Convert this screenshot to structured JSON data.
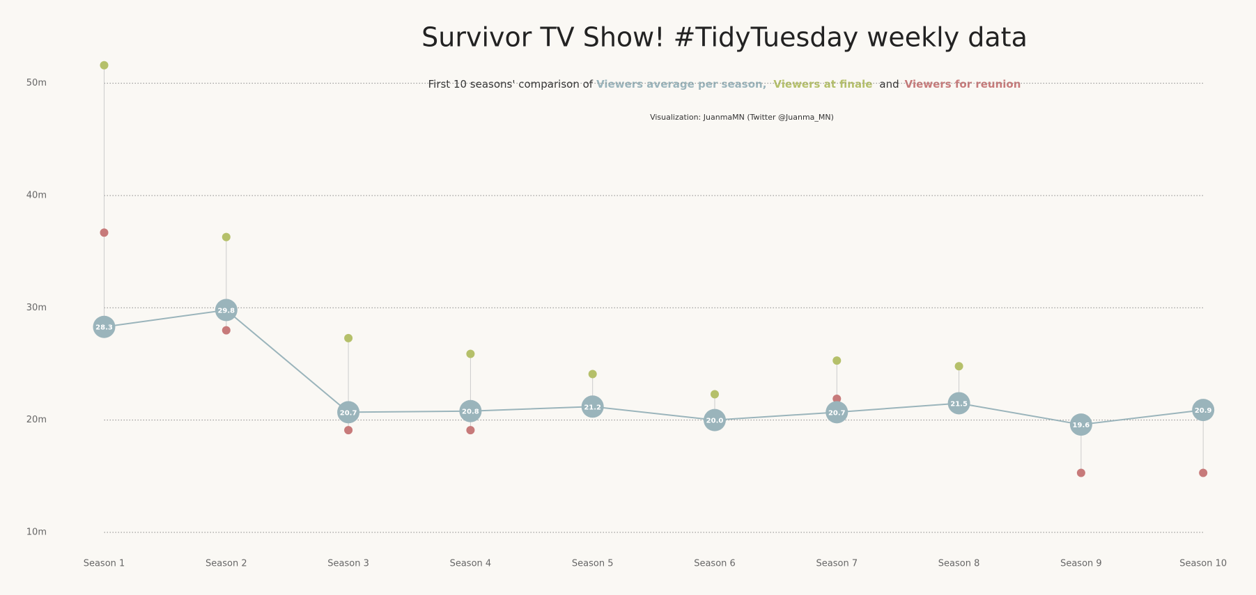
{
  "chart_data": {
    "type": "line",
    "title": "Survivor TV Show! #TidyTuesday weekly data",
    "subtitle": "First 10 seasons' comparison of",
    "subtitle_separator": ",",
    "subtitle_conjunction": "and",
    "credit": "Visualization: JuanmaMN (Twitter @Juanma_MN)",
    "categories": [
      "Season 1",
      "Season 2",
      "Season 3",
      "Season 4",
      "Season 5",
      "Season 6",
      "Season 7",
      "Season 8",
      "Season 9",
      "Season 10"
    ],
    "series": [
      {
        "name": "Viewers average per season",
        "color": "#9ab4bb",
        "values": [
          28.3,
          29.8,
          20.7,
          20.8,
          21.2,
          20.0,
          20.7,
          21.5,
          19.6,
          20.9
        ],
        "value_labels": [
          "28.3",
          "29.8",
          "20.7",
          "20.8",
          "21.2",
          "20.0",
          "20.7",
          "21.5",
          "19.6",
          "20.9"
        ]
      },
      {
        "name": "Viewers at finale",
        "color": "#b5c06a",
        "values": [
          51.6,
          36.3,
          27.3,
          25.9,
          24.1,
          22.3,
          25.3,
          24.8,
          null,
          null
        ]
      },
      {
        "name": "Viewers for reunion",
        "color": "#c77a7a",
        "values": [
          36.7,
          28.0,
          19.1,
          19.1,
          20.6,
          null,
          21.9,
          null,
          15.3,
          15.3
        ]
      }
    ],
    "ylim": [
      10,
      50
    ],
    "yticks": [
      {
        "value": 10,
        "label": "10m"
      },
      {
        "value": 20,
        "label": "20m"
      },
      {
        "value": 30,
        "label": "30m"
      },
      {
        "value": 40,
        "label": "40m"
      },
      {
        "value": 50,
        "label": "50m"
      }
    ],
    "grid": true
  }
}
